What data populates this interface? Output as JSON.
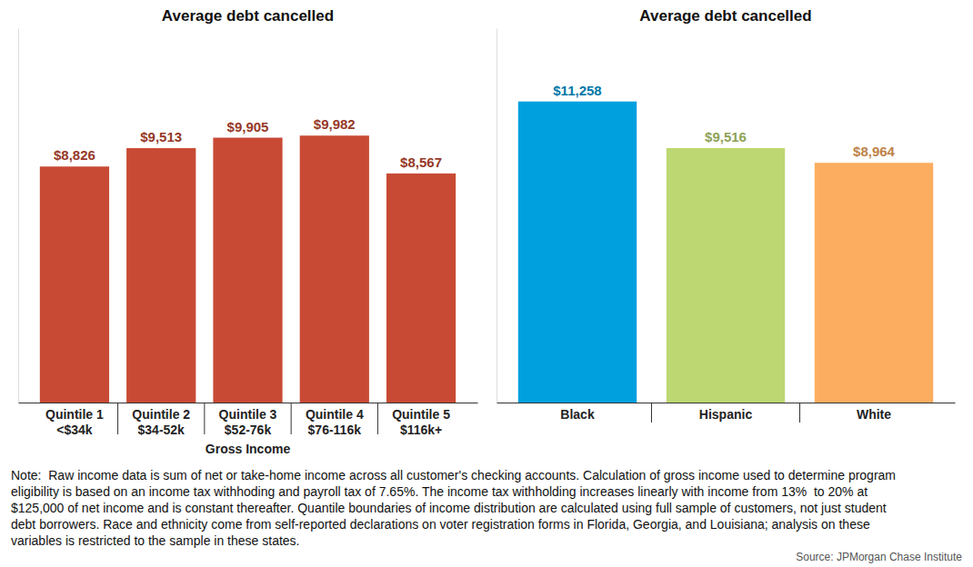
{
  "chart_data": [
    {
      "type": "bar",
      "title": "Average debt cancelled",
      "xlabel": "Gross Income",
      "categories": [
        "Quintile 1\n<$34k",
        "Quintile 2\n$34-52k",
        "Quintile 3\n$52-76k",
        "Quintile 4\n$76-116k",
        "Quintile 5\n$116k+"
      ],
      "values": [
        8826,
        9513,
        9905,
        9982,
        8567
      ],
      "value_labels": [
        "$8,826",
        "$9,513",
        "$9,905",
        "$9,982",
        "$8,567"
      ],
      "color": "#c84a34",
      "ylim": [
        0,
        14000
      ],
      "data_labels": true,
      "tick_labels": "x",
      "grid": false
    },
    {
      "type": "bar",
      "title": "Average debt cancelled",
      "categories": [
        "Black",
        "Hispanic",
        "White"
      ],
      "values": [
        11258,
        9516,
        8964
      ],
      "value_labels": [
        "$11,258",
        "$9,516",
        "$8,964"
      ],
      "colors": [
        "#00a0df",
        "#bdd772",
        "#fdad5f"
      ],
      "ylim": [
        0,
        14000
      ],
      "data_labels": true,
      "tick_labels": "x",
      "grid": false
    }
  ],
  "note": [
    "Note:  Raw income data is sum of net or take-home income across all customer's checking accounts. Calculation of gross income used to determine program",
    "eligibility is based on an income tax withhoding and payroll tax of 7.65%. The income tax withholding increases linearly with income from 13%  to 20% at",
    "$125,000 of net income and is constant thereafter. Quantile boundaries of income distribution are calculated using full sample of customers, not just student",
    "debt borrowers. Race and ethnicity come from self-reported declarations on voter registration forms in Florida, Georgia, and Louisiana; analysis on these",
    "variables is restricted to the sample in these states."
  ],
  "source": "Source: JPMorgan Chase Institute"
}
